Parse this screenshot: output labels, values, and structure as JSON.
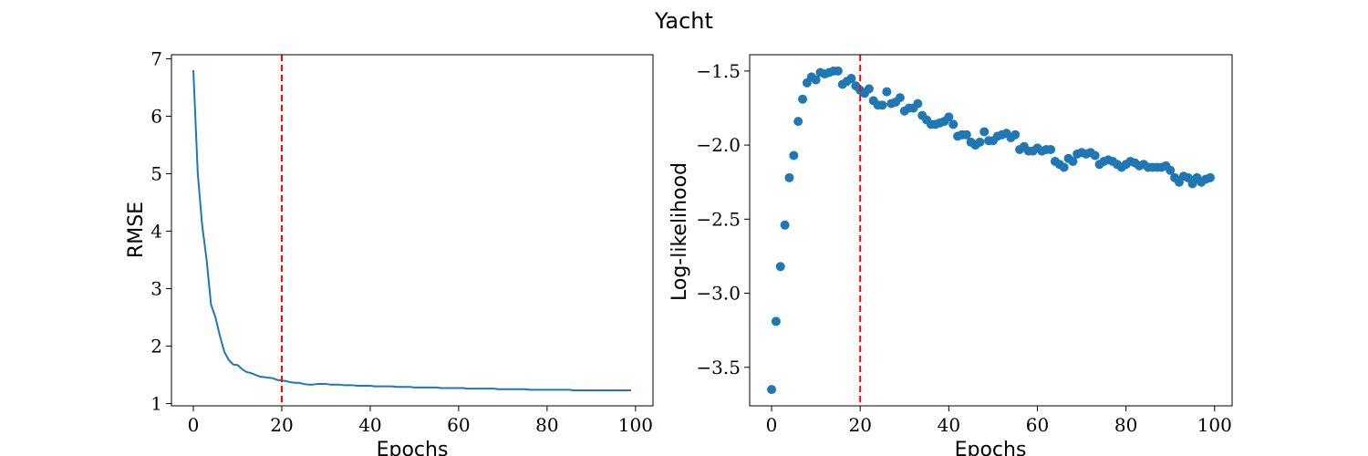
{
  "figure_title": "Yacht",
  "colors": {
    "series": "#1f77b4",
    "marker": "#ff0000"
  },
  "chart_data": [
    {
      "type": "line",
      "xlabel": "Epochs",
      "ylabel": "RMSE",
      "xlim": [
        -4.95,
        103.95
      ],
      "ylim": [
        0.96,
        7.07
      ],
      "xticks": [
        0,
        20,
        40,
        60,
        80,
        100
      ],
      "yticks": [
        1,
        2,
        3,
        4,
        5,
        6,
        7
      ],
      "grid": false,
      "vline_x": 20,
      "series": [
        {
          "x": [
            0,
            1,
            2,
            3,
            4,
            5,
            6,
            7,
            8,
            9,
            10,
            11,
            12,
            13,
            14,
            15,
            16,
            17,
            18,
            19,
            20,
            21,
            22,
            23,
            24,
            25,
            26,
            27,
            28,
            29,
            30,
            31,
            32,
            33,
            34,
            35,
            36,
            37,
            38,
            39,
            40,
            41,
            42,
            43,
            44,
            45,
            46,
            47,
            48,
            49,
            50,
            51,
            52,
            53,
            54,
            55,
            56,
            57,
            58,
            59,
            60,
            61,
            62,
            63,
            64,
            65,
            66,
            67,
            68,
            69,
            70,
            71,
            72,
            73,
            74,
            75,
            76,
            77,
            78,
            79,
            80,
            81,
            82,
            83,
            84,
            85,
            86,
            87,
            88,
            89,
            90,
            91,
            92,
            93,
            94,
            95,
            96,
            97,
            98,
            99
          ],
          "y": [
            6.8,
            5.0,
            4.1,
            3.5,
            2.72,
            2.5,
            2.18,
            1.9,
            1.76,
            1.68,
            1.67,
            1.6,
            1.55,
            1.53,
            1.5,
            1.47,
            1.46,
            1.45,
            1.44,
            1.41,
            1.4,
            1.39,
            1.37,
            1.36,
            1.36,
            1.34,
            1.33,
            1.33,
            1.34,
            1.34,
            1.34,
            1.33,
            1.33,
            1.33,
            1.32,
            1.32,
            1.32,
            1.31,
            1.31,
            1.31,
            1.31,
            1.3,
            1.3,
            1.3,
            1.3,
            1.3,
            1.29,
            1.29,
            1.29,
            1.29,
            1.28,
            1.28,
            1.28,
            1.28,
            1.28,
            1.28,
            1.27,
            1.27,
            1.27,
            1.27,
            1.27,
            1.27,
            1.26,
            1.26,
            1.26,
            1.26,
            1.26,
            1.26,
            1.26,
            1.25,
            1.25,
            1.25,
            1.25,
            1.25,
            1.25,
            1.25,
            1.24,
            1.24,
            1.24,
            1.24,
            1.24,
            1.24,
            1.24,
            1.24,
            1.24,
            1.24,
            1.23,
            1.23,
            1.23,
            1.23,
            1.23,
            1.23,
            1.23,
            1.23,
            1.23,
            1.23,
            1.23,
            1.23,
            1.23,
            1.23
          ]
        }
      ]
    },
    {
      "type": "scatter",
      "xlabel": "Epochs",
      "ylabel": "Log-likelihood",
      "xlim": [
        -4.95,
        103.95
      ],
      "ylim": [
        -3.76,
        -1.39
      ],
      "xticks": [
        0,
        20,
        40,
        60,
        80,
        100
      ],
      "yticks": [
        -3.5,
        -3.0,
        -2.5,
        -2.0,
        -1.5
      ],
      "ytick_labels": [
        "−3.5",
        "−3.0",
        "−2.5",
        "−2.0",
        "−1.5"
      ],
      "grid": false,
      "vline_x": 20,
      "series": [
        {
          "x": [
            0,
            1,
            2,
            3,
            4,
            5,
            6,
            7,
            8,
            9,
            10,
            11,
            12,
            13,
            14,
            15,
            16,
            17,
            18,
            19,
            20,
            21,
            22,
            23,
            24,
            25,
            26,
            27,
            28,
            29,
            30,
            31,
            32,
            33,
            34,
            35,
            36,
            37,
            38,
            39,
            40,
            41,
            42,
            43,
            44,
            45,
            46,
            47,
            48,
            49,
            50,
            51,
            52,
            53,
            54,
            55,
            56,
            57,
            58,
            59,
            60,
            61,
            62,
            63,
            64,
            65,
            66,
            67,
            68,
            69,
            70,
            71,
            72,
            73,
            74,
            75,
            76,
            77,
            78,
            79,
            80,
            81,
            82,
            83,
            84,
            85,
            86,
            87,
            88,
            89,
            90,
            91,
            92,
            93,
            94,
            95,
            96,
            97,
            98,
            99
          ],
          "y": [
            -3.65,
            -3.19,
            -2.82,
            -2.54,
            -2.22,
            -2.07,
            -1.84,
            -1.69,
            -1.58,
            -1.54,
            -1.56,
            -1.51,
            -1.52,
            -1.51,
            -1.5,
            -1.5,
            -1.59,
            -1.57,
            -1.55,
            -1.6,
            -1.63,
            -1.65,
            -1.62,
            -1.7,
            -1.73,
            -1.73,
            -1.64,
            -1.72,
            -1.71,
            -1.68,
            -1.77,
            -1.75,
            -1.75,
            -1.72,
            -1.8,
            -1.83,
            -1.86,
            -1.86,
            -1.85,
            -1.84,
            -1.81,
            -1.86,
            -1.94,
            -1.93,
            -1.93,
            -1.98,
            -2.0,
            -1.98,
            -1.91,
            -1.97,
            -1.97,
            -1.94,
            -1.93,
            -1.92,
            -1.95,
            -1.93,
            -2.03,
            -2.01,
            -2.04,
            -2.04,
            -2.02,
            -2.04,
            -2.03,
            -2.03,
            -2.11,
            -2.13,
            -2.15,
            -2.09,
            -2.11,
            -2.06,
            -2.05,
            -2.06,
            -2.05,
            -2.07,
            -2.13,
            -2.11,
            -2.1,
            -2.11,
            -2.13,
            -2.15,
            -2.13,
            -2.11,
            -2.12,
            -2.14,
            -2.13,
            -2.15,
            -2.15,
            -2.15,
            -2.15,
            -2.14,
            -2.17,
            -2.22,
            -2.25,
            -2.21,
            -2.22,
            -2.26,
            -2.22,
            -2.25,
            -2.23,
            -2.22
          ]
        }
      ]
    }
  ]
}
